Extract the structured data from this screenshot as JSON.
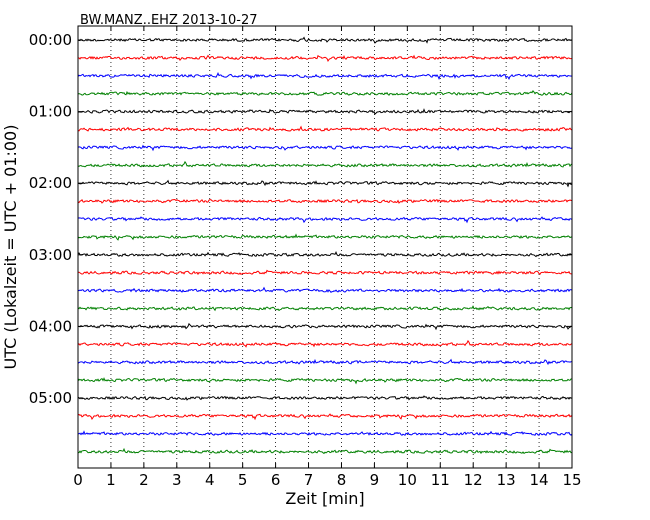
{
  "chart_data": {
    "type": "line",
    "title": "BW.MANZ..EHZ 2013-10-27",
    "xlabel": "Zeit  [min]",
    "ylabel": "UTC (Lokalzeit = UTC + 01:00)",
    "xlim": [
      0,
      15
    ],
    "x_ticks": [
      "0",
      "1",
      "2",
      "3",
      "4",
      "5",
      "6",
      "7",
      "8",
      "9",
      "10",
      "11",
      "12",
      "13",
      "14",
      "15"
    ],
    "y_ticks": [
      "00:00",
      "01:00",
      "02:00",
      "03:00",
      "04:00",
      "05:00"
    ],
    "grid": "vertical dotted",
    "line_colors": [
      "#000000",
      "#ff0000",
      "#0000ff",
      "#008000"
    ],
    "trace_count": 24,
    "trace_interval_minutes": 15
  }
}
